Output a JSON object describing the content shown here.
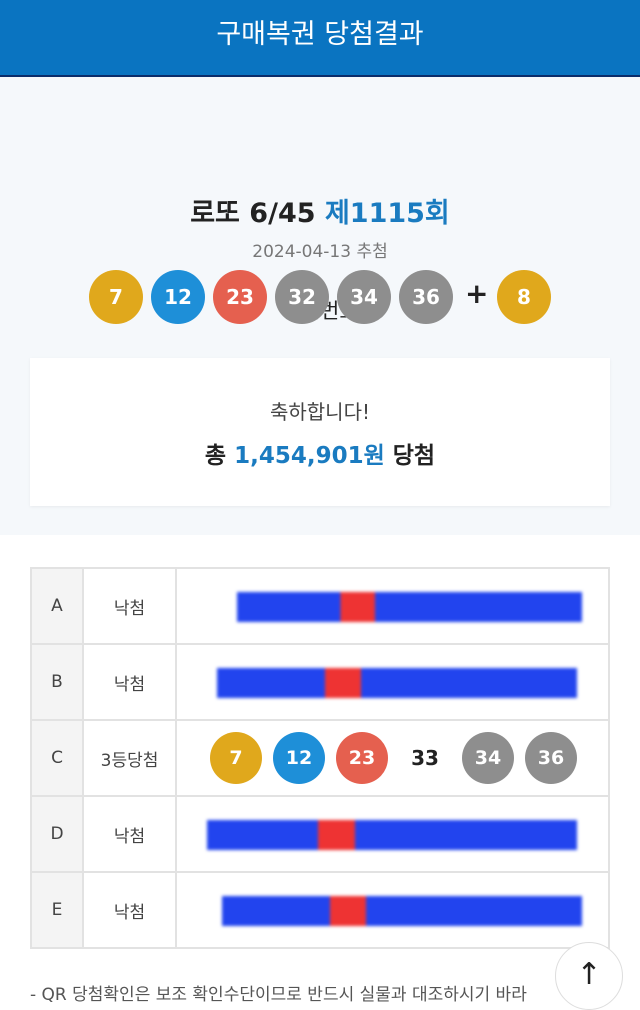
{
  "header": {
    "title": "구매복권 당첨결과"
  },
  "draw": {
    "game": "로또 6/45",
    "round": "제1115회",
    "date": "2024-04-13 추첨",
    "numbers_label": "당첨번호",
    "numbers": [
      {
        "n": "7",
        "color": "#e0a81c"
      },
      {
        "n": "12",
        "color": "#1e8fd8"
      },
      {
        "n": "23",
        "color": "#e5604f"
      },
      {
        "n": "32",
        "color": "#8e8e8e"
      },
      {
        "n": "34",
        "color": "#8e8e8e"
      },
      {
        "n": "36",
        "color": "#8e8e8e"
      }
    ],
    "plus": "+",
    "bonus": {
      "n": "8",
      "color": "#e0a81c"
    }
  },
  "result": {
    "congrats": "축하합니다!",
    "prefix": "총",
    "amount": "1,454,901원",
    "suffix": "당첨"
  },
  "tickets": [
    {
      "label": "A",
      "status": "낙첨",
      "redacted": true
    },
    {
      "label": "B",
      "status": "낙첨",
      "redacted": true
    },
    {
      "label": "C",
      "status": "3등당첨",
      "numbers": [
        {
          "n": "7",
          "color": "#e0a81c",
          "match": true
        },
        {
          "n": "12",
          "color": "#1e8fd8",
          "match": true
        },
        {
          "n": "23",
          "color": "#e5604f",
          "match": true
        },
        {
          "n": "33",
          "match": false
        },
        {
          "n": "34",
          "color": "#8e8e8e",
          "match": true
        },
        {
          "n": "36",
          "color": "#8e8e8e",
          "match": true
        }
      ]
    },
    {
      "label": "D",
      "status": "낙첨",
      "redacted": true
    },
    {
      "label": "E",
      "status": "낙첨",
      "redacted": true
    }
  ],
  "note": "- QR 당첨확인은 보조 확인수단이므로 반드시 실물과 대조하시기 바라",
  "scroll_top": {
    "icon": "arrow-up-icon",
    "glyph": "↑"
  }
}
